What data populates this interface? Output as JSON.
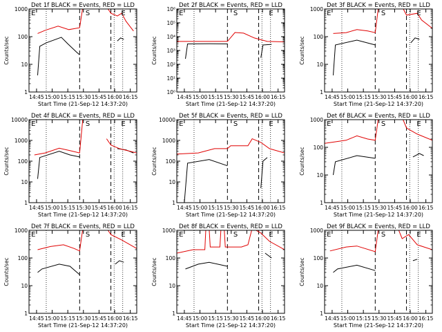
{
  "x_ticks": [
    "14:45",
    "15:00",
    "15:15",
    "15:30",
    "15:45",
    "16:00",
    "16:15"
  ],
  "xlabel": "Start Time (21-Sep-12 14:37:20)",
  "ylabel": "Counts/sec",
  "markers": {
    "left": "E",
    "middle": "S",
    "right": "E"
  },
  "colors": {
    "events": "#000000",
    "lld": "#e00000",
    "axes": "#000000"
  },
  "chart_data": [
    {
      "type": "line",
      "title": "Det 1f BLACK = Events, RED = LLD",
      "yscale": "log",
      "ylim": [
        1,
        1000
      ],
      "y_ticks": [
        {
          "v": 1,
          "label": "1"
        },
        {
          "v": 10,
          "label": "10"
        },
        {
          "v": 100,
          "label": "100"
        },
        {
          "v": 1000,
          "label": "1000"
        }
      ],
      "series": [
        {
          "key": "events",
          "points": [
            [
              0.08,
              4
            ],
            [
              0.1,
              45
            ],
            [
              0.16,
              60
            ],
            [
              0.3,
              95
            ],
            [
              0.36,
              55
            ],
            [
              0.44,
              28
            ],
            [
              0.47,
              22
            ]
          ]
        },
        {
          "key": "events",
          "points": [
            [
              0.82,
              70
            ],
            [
              0.85,
              90
            ],
            [
              0.88,
              80
            ]
          ]
        },
        {
          "key": "lld",
          "points": [
            [
              0.08,
              130
            ],
            [
              0.15,
              170
            ],
            [
              0.27,
              240
            ],
            [
              0.37,
              180
            ],
            [
              0.47,
              210
            ],
            [
              0.5,
              1200
            ],
            [
              0.62,
              1200
            ]
          ]
        },
        {
          "key": "lld",
          "points": [
            [
              0.72,
              1200
            ],
            [
              0.76,
              700
            ],
            [
              0.82,
              560
            ],
            [
              0.86,
              700
            ],
            [
              0.9,
              360
            ],
            [
              0.97,
              160
            ]
          ]
        }
      ]
    },
    {
      "type": "line",
      "title": "Det 2f BLACK = Events, RED = LLD",
      "yscale": "log",
      "ylim": [
        1,
        1000000
      ],
      "y_ticks": [
        {
          "v": 1,
          "label": "10⁰"
        },
        {
          "v": 10,
          "label": "10¹"
        },
        {
          "v": 100,
          "label": "10²"
        },
        {
          "v": 1000,
          "label": "10³"
        },
        {
          "v": 10000,
          "label": "10⁴"
        },
        {
          "v": 100000,
          "label": "10⁵"
        },
        {
          "v": 1000000,
          "label": "10⁶"
        }
      ],
      "series": [
        {
          "key": "events",
          "points": [
            [
              0.08,
              250
            ],
            [
              0.1,
              3000
            ],
            [
              0.3,
              3100
            ],
            [
              0.47,
              3000
            ]
          ]
        },
        {
          "key": "events",
          "points": [
            [
              0.78,
              300
            ],
            [
              0.8,
              2500
            ],
            [
              0.88,
              2800
            ]
          ]
        },
        {
          "key": "lld",
          "points": [
            [
              0.0,
              4500
            ],
            [
              0.47,
              4500
            ],
            [
              0.54,
              20000
            ],
            [
              0.62,
              18000
            ],
            [
              0.72,
              8000
            ],
            [
              0.78,
              6000
            ],
            [
              0.84,
              4500
            ],
            [
              1.0,
              4200
            ]
          ]
        }
      ]
    },
    {
      "type": "line",
      "title": "Det 3f BLACK = Events, RED = LLD",
      "yscale": "log",
      "ylim": [
        1,
        1000
      ],
      "y_ticks": [
        {
          "v": 1,
          "label": "1"
        },
        {
          "v": 10,
          "label": "10"
        },
        {
          "v": 100,
          "label": "100"
        },
        {
          "v": 1000,
          "label": "1000"
        }
      ],
      "series": [
        {
          "key": "events",
          "points": [
            [
              0.08,
              4
            ],
            [
              0.1,
              50
            ],
            [
              0.3,
              75
            ],
            [
              0.47,
              50
            ]
          ]
        },
        {
          "key": "events",
          "points": [
            [
              0.8,
              60
            ],
            [
              0.84,
              90
            ],
            [
              0.88,
              80
            ]
          ]
        },
        {
          "key": "lld",
          "points": [
            [
              0.08,
              130
            ],
            [
              0.2,
              140
            ],
            [
              0.3,
              180
            ],
            [
              0.4,
              160
            ],
            [
              0.47,
              140
            ],
            [
              0.5,
              1200
            ],
            [
              0.72,
              1200
            ],
            [
              0.76,
              600
            ],
            [
              0.86,
              700
            ],
            [
              0.9,
              400
            ],
            [
              1.0,
              200
            ]
          ]
        }
      ]
    },
    {
      "type": "line",
      "title": "Det 4f BLACK = Events, RED = LLD",
      "yscale": "log",
      "ylim": [
        1,
        10000
      ],
      "y_ticks": [
        {
          "v": 1,
          "label": "1"
        },
        {
          "v": 10,
          "label": "10"
        },
        {
          "v": 100,
          "label": "100"
        },
        {
          "v": 1000,
          "label": "1000"
        },
        {
          "v": 10000,
          "label": "10000"
        }
      ],
      "series": [
        {
          "key": "events",
          "points": [
            [
              0.08,
              14
            ],
            [
              0.1,
              150
            ],
            [
              0.28,
              300
            ],
            [
              0.38,
              200
            ],
            [
              0.47,
              160
            ]
          ]
        },
        {
          "key": "events",
          "points": [
            [
              0.82,
              400
            ],
            [
              0.9,
              350
            ],
            [
              0.97,
              250
            ]
          ]
        },
        {
          "key": "lld",
          "points": [
            [
              0.05,
              200
            ],
            [
              0.15,
              250
            ],
            [
              0.28,
              420
            ],
            [
              0.38,
              320
            ],
            [
              0.47,
              250
            ],
            [
              0.5,
              12000
            ],
            [
              0.68,
              12000
            ]
          ]
        },
        {
          "key": "lld",
          "points": [
            [
              0.72,
              1200
            ],
            [
              0.76,
              600
            ],
            [
              0.84,
              400
            ],
            [
              1.0,
              250
            ]
          ]
        }
      ]
    },
    {
      "type": "line",
      "title": "Det 5f BLACK = Events, RED = LLD",
      "yscale": "log",
      "ylim": [
        1,
        10000
      ],
      "y_ticks": [
        {
          "v": 1,
          "label": "1"
        },
        {
          "v": 10,
          "label": "10"
        },
        {
          "v": 100,
          "label": "100"
        },
        {
          "v": 1000,
          "label": "1000"
        },
        {
          "v": 10000,
          "label": "10000"
        }
      ],
      "series": [
        {
          "key": "events",
          "points": [
            [
              0.07,
              1
            ],
            [
              0.1,
              80
            ],
            [
              0.3,
              120
            ],
            [
              0.47,
              60
            ]
          ]
        },
        {
          "key": "events",
          "points": [
            [
              0.78,
              5
            ],
            [
              0.8,
              100
            ],
            [
              0.84,
              150
            ]
          ]
        },
        {
          "key": "lld",
          "points": [
            [
              0.0,
              220
            ],
            [
              0.2,
              250
            ],
            [
              0.35,
              400
            ],
            [
              0.47,
              400
            ],
            [
              0.5,
              550
            ],
            [
              0.66,
              550
            ],
            [
              0.7,
              1200
            ],
            [
              0.78,
              800
            ],
            [
              0.86,
              400
            ],
            [
              1.0,
              250
            ]
          ]
        }
      ]
    },
    {
      "type": "line",
      "title": "Det 6f BLACK = Events, RED = LLD",
      "yscale": "log",
      "ylim": [
        1,
        1000
      ],
      "y_ticks": [
        {
          "v": 1,
          "label": "1"
        },
        {
          "v": 10,
          "label": "10"
        },
        {
          "v": 100,
          "label": "100"
        },
        {
          "v": 1000,
          "label": "1000"
        }
      ],
      "series": [
        {
          "key": "events",
          "points": [
            [
              0.08,
              10
            ],
            [
              0.1,
              30
            ],
            [
              0.3,
              50
            ],
            [
              0.47,
              40
            ]
          ]
        },
        {
          "key": "events",
          "points": [
            [
              0.82,
              45
            ],
            [
              0.88,
              60
            ],
            [
              0.92,
              50
            ]
          ]
        },
        {
          "key": "lld",
          "points": [
            [
              0.0,
              140
            ],
            [
              0.2,
              180
            ],
            [
              0.3,
              260
            ],
            [
              0.4,
              200
            ],
            [
              0.47,
              180
            ],
            [
              0.5,
              1200
            ],
            [
              0.72,
              1200
            ],
            [
              0.76,
              500
            ],
            [
              0.86,
              300
            ],
            [
              1.0,
              180
            ]
          ]
        }
      ]
    },
    {
      "type": "line",
      "title": "Det 7f BLACK = Events, RED = LLD",
      "yscale": "log",
      "ylim": [
        1,
        1000
      ],
      "y_ticks": [
        {
          "v": 1,
          "label": "1"
        },
        {
          "v": 10,
          "label": "10"
        },
        {
          "v": 100,
          "label": "100"
        },
        {
          "v": 1000,
          "label": "1000"
        }
      ],
      "series": [
        {
          "key": "events",
          "points": [
            [
              0.08,
              30
            ],
            [
              0.12,
              40
            ],
            [
              0.28,
              60
            ],
            [
              0.38,
              50
            ],
            [
              0.47,
              25
            ]
          ]
        },
        {
          "key": "events",
          "points": [
            [
              0.8,
              60
            ],
            [
              0.84,
              80
            ],
            [
              0.88,
              70
            ]
          ]
        },
        {
          "key": "lld",
          "points": [
            [
              0.08,
              200
            ],
            [
              0.2,
              260
            ],
            [
              0.32,
              300
            ],
            [
              0.42,
              220
            ],
            [
              0.47,
              180
            ],
            [
              0.5,
              1200
            ],
            [
              0.62,
              1200
            ]
          ]
        },
        {
          "key": "lld",
          "points": [
            [
              0.72,
              1200
            ],
            [
              0.76,
              700
            ],
            [
              0.86,
              450
            ],
            [
              1.0,
              220
            ]
          ]
        }
      ]
    },
    {
      "type": "line",
      "title": "Det 8f BLACK = Events, RED = LLD",
      "yscale": "log",
      "ylim": [
        1,
        1000
      ],
      "y_ticks": [
        {
          "v": 1,
          "label": "1"
        },
        {
          "v": 10,
          "label": "10"
        },
        {
          "v": 100,
          "label": "100"
        },
        {
          "v": 1000,
          "label": "1000"
        }
      ],
      "series": [
        {
          "key": "events",
          "points": [
            [
              0.08,
              40
            ],
            [
              0.2,
              60
            ],
            [
              0.3,
              70
            ],
            [
              0.47,
              50
            ]
          ]
        },
        {
          "key": "events",
          "points": [
            [
              0.82,
              150
            ],
            [
              0.88,
              100
            ]
          ]
        },
        {
          "key": "lld",
          "points": [
            [
              0.0,
              150
            ],
            [
              0.15,
              200
            ],
            [
              0.26,
              200
            ],
            [
              0.27,
              1200
            ],
            [
              0.3,
              1200
            ],
            [
              0.31,
              250
            ],
            [
              0.4,
              250
            ],
            [
              0.41,
              1200
            ],
            [
              0.44,
              1200
            ],
            [
              0.45,
              250
            ],
            [
              0.6,
              250
            ],
            [
              0.66,
              300
            ],
            [
              0.7,
              1200
            ],
            [
              0.78,
              800
            ],
            [
              0.86,
              400
            ],
            [
              1.0,
              200
            ]
          ]
        }
      ]
    },
    {
      "type": "line",
      "title": "Det 9f BLACK = Events, RED = LLD",
      "yscale": "log",
      "ylim": [
        1,
        1000
      ],
      "y_ticks": [
        {
          "v": 1,
          "label": "1"
        },
        {
          "v": 10,
          "label": "10"
        },
        {
          "v": 100,
          "label": "100"
        },
        {
          "v": 1000,
          "label": "1000"
        }
      ],
      "series": [
        {
          "key": "events",
          "points": [
            [
              0.08,
              30
            ],
            [
              0.12,
              40
            ],
            [
              0.3,
              55
            ],
            [
              0.47,
              35
            ]
          ]
        },
        {
          "key": "events",
          "points": [
            [
              0.82,
              80
            ],
            [
              0.86,
              90
            ]
          ]
        },
        {
          "key": "lld",
          "points": [
            [
              0.05,
              180
            ],
            [
              0.2,
              250
            ],
            [
              0.3,
              270
            ],
            [
              0.47,
              170
            ],
            [
              0.5,
              1200
            ],
            [
              0.68,
              1200
            ],
            [
              0.72,
              500
            ],
            [
              0.78,
              700
            ],
            [
              0.86,
              300
            ],
            [
              1.0,
              200
            ]
          ]
        }
      ]
    }
  ]
}
